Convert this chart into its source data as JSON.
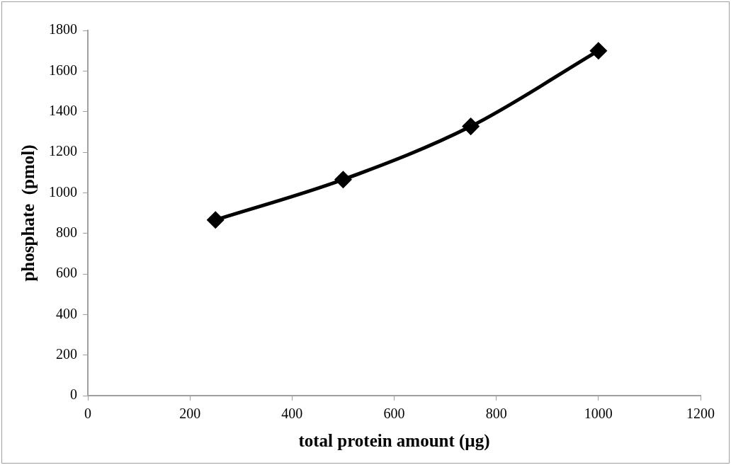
{
  "chart_data": {
    "type": "line",
    "xlabel": "total protein amount (µg)",
    "ylabel": "phosphate  (pmol)",
    "x": [
      250,
      500,
      750,
      1000
    ],
    "series": [
      {
        "color": "#000000",
        "values": [
          866,
          1065,
          1327,
          1700
        ]
      }
    ],
    "xlim": [
      0,
      1200
    ],
    "xticks": [
      0,
      200,
      400,
      600,
      800,
      1000,
      1200
    ],
    "ylim": [
      0,
      1800
    ],
    "yticks": [
      0,
      200,
      400,
      600,
      800,
      1000,
      1200,
      1400,
      1600,
      1800
    ],
    "grid": false,
    "legend": false,
    "marker": "diamond",
    "line_style": "solid"
  }
}
